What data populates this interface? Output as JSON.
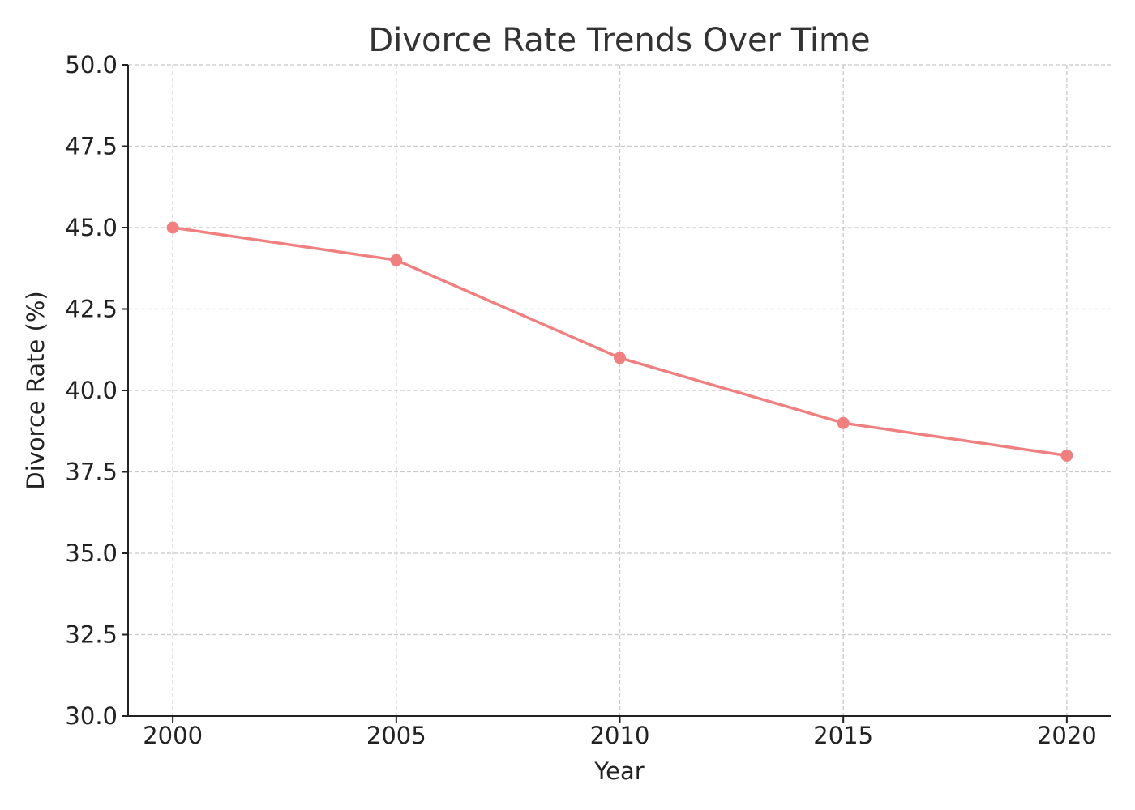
{
  "chart_data": {
    "type": "line",
    "title": "Divorce Rate Trends Over Time",
    "xlabel": "Year",
    "ylabel": "Divorce Rate (%)",
    "x": [
      2000,
      2005,
      2010,
      2015,
      2020
    ],
    "series": [
      {
        "values": [
          45,
          44,
          41,
          39,
          38
        ],
        "color": "#f08080",
        "marker": "circle"
      }
    ],
    "xlim": [
      1999,
      2021
    ],
    "ylim": [
      30,
      50
    ],
    "xticks": [
      "2000",
      "2005",
      "2010",
      "2015",
      "2020"
    ],
    "yticks": [
      "30.0",
      "32.5",
      "35.0",
      "37.5",
      "40.0",
      "42.5",
      "45.0",
      "47.5",
      "50.0"
    ],
    "grid": true,
    "legend": "none"
  }
}
